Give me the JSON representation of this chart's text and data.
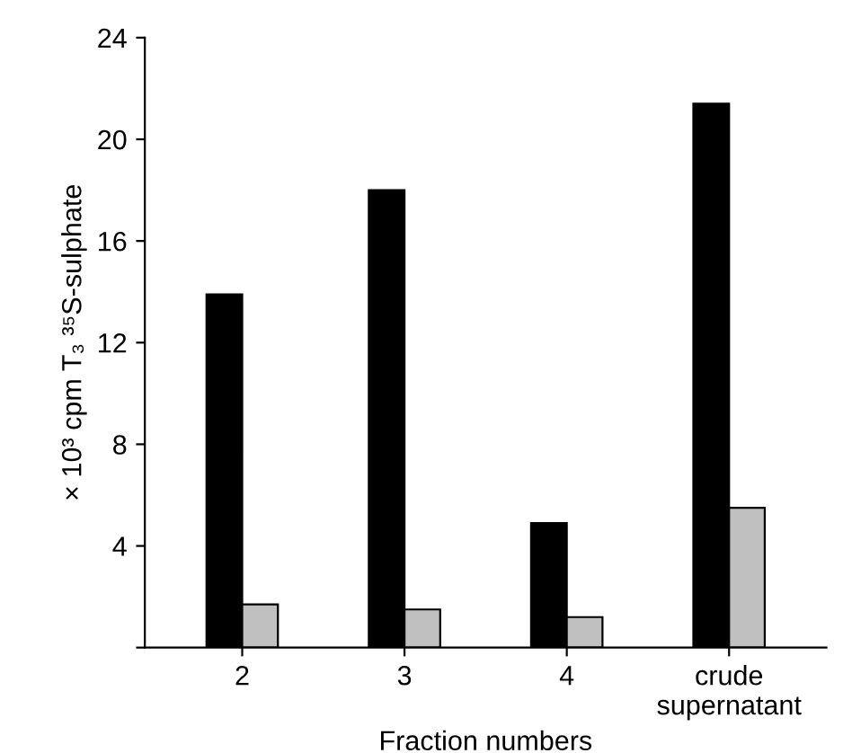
{
  "chart_data": {
    "type": "bar",
    "xlabel": "Fraction numbers",
    "ylabel": "× 10³ cpm T₃ ³⁵S-sulphate",
    "categories": [
      "2",
      "3",
      "4",
      "crude\nsupernatant"
    ],
    "series": [
      {
        "color": "#000000",
        "values": [
          13.9,
          18.0,
          4.9,
          21.4
        ]
      },
      {
        "color": "#c0c0c0",
        "values": [
          1.7,
          1.5,
          1.2,
          5.5
        ]
      }
    ],
    "ylim": [
      0,
      24
    ],
    "yticks": [
      {
        "value": 0,
        "label": null
      },
      4,
      8,
      12,
      16,
      20,
      24
    ],
    "grid": false
  }
}
